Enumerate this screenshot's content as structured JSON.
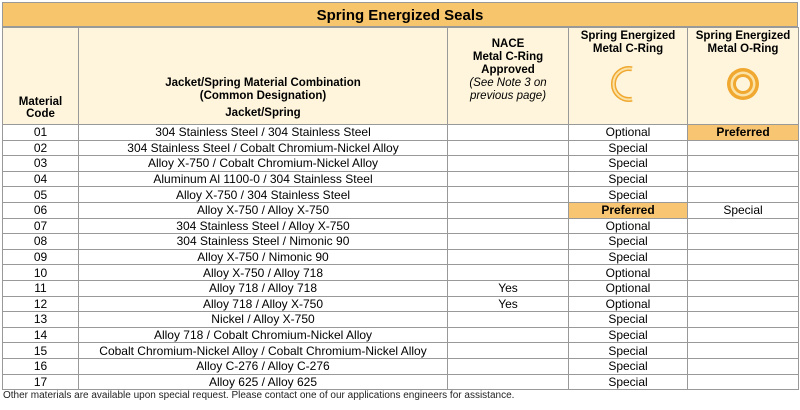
{
  "title": "Spring Energized Seals",
  "header": {
    "material_code": "Material Code",
    "combination": [
      "Jacket/Spring Material Combination",
      "(Common Designation)",
      "Jacket/Spring"
    ],
    "nace": [
      "NACE",
      "Metal C-Ring",
      "Approved",
      "(See Note 3 on previous page)"
    ],
    "c_ring": "Spring Energized Metal C-Ring",
    "o_ring": "Spring Energized Metal O-Ring"
  },
  "table": {
    "rows": [
      [
        "01",
        "304 Stainless Steel / 304 Stainless Steel",
        "",
        "Optional",
        "Preferred"
      ],
      [
        "02",
        "304 Stainless Steel / Cobalt Chromium-Nickel Alloy",
        "",
        "Special",
        ""
      ],
      [
        "03",
        "Alloy X-750 / Cobalt Chromium-Nickel Alloy",
        "",
        "Special",
        ""
      ],
      [
        "04",
        "Aluminum Al 1100-0 / 304 Stainless Steel",
        "",
        "Special",
        ""
      ],
      [
        "05",
        "Alloy X-750 / 304 Stainless Steel",
        "",
        "Special",
        ""
      ],
      [
        "06",
        "Alloy X-750 / Alloy X-750",
        "",
        "Preferred",
        "Special"
      ],
      [
        "07",
        "304 Stainless Steel / Alloy X-750",
        "",
        "Optional",
        ""
      ],
      [
        "08",
        "304 Stainless Steel / Nimonic 90",
        "",
        "Special",
        ""
      ],
      [
        "09",
        "Alloy X-750 / Nimonic 90",
        "",
        "Special",
        ""
      ],
      [
        "10",
        "Alloy X-750 / Alloy 718",
        "",
        "Optional",
        ""
      ],
      [
        "11",
        "Alloy 718 / Alloy 718",
        "Yes",
        "Optional",
        ""
      ],
      [
        "12",
        "Alloy 718 / Alloy X-750",
        "Yes",
        "Optional",
        ""
      ],
      [
        "13",
        "Nickel / Alloy X-750",
        "",
        "Special",
        ""
      ],
      [
        "14",
        "Alloy 718 / Cobalt Chromium-Nickel Alloy",
        "",
        "Special",
        ""
      ],
      [
        "15",
        "Cobalt Chromium-Nickel Alloy / Cobalt Chromium-Nickel Alloy",
        "",
        "Special",
        ""
      ],
      [
        "16",
        "Alloy C-276 / Alloy C-276",
        "",
        "Special",
        ""
      ],
      [
        "17",
        "Alloy 625 / Alloy 625",
        "",
        "Special",
        ""
      ]
    ],
    "highlight": {
      "color": "#f8c672",
      "cells": [
        [
          0,
          4
        ],
        [
          5,
          3
        ]
      ]
    }
  },
  "footnote": "Other materials are available upon special request. Please contact one of our applications engineers for assistance."
}
